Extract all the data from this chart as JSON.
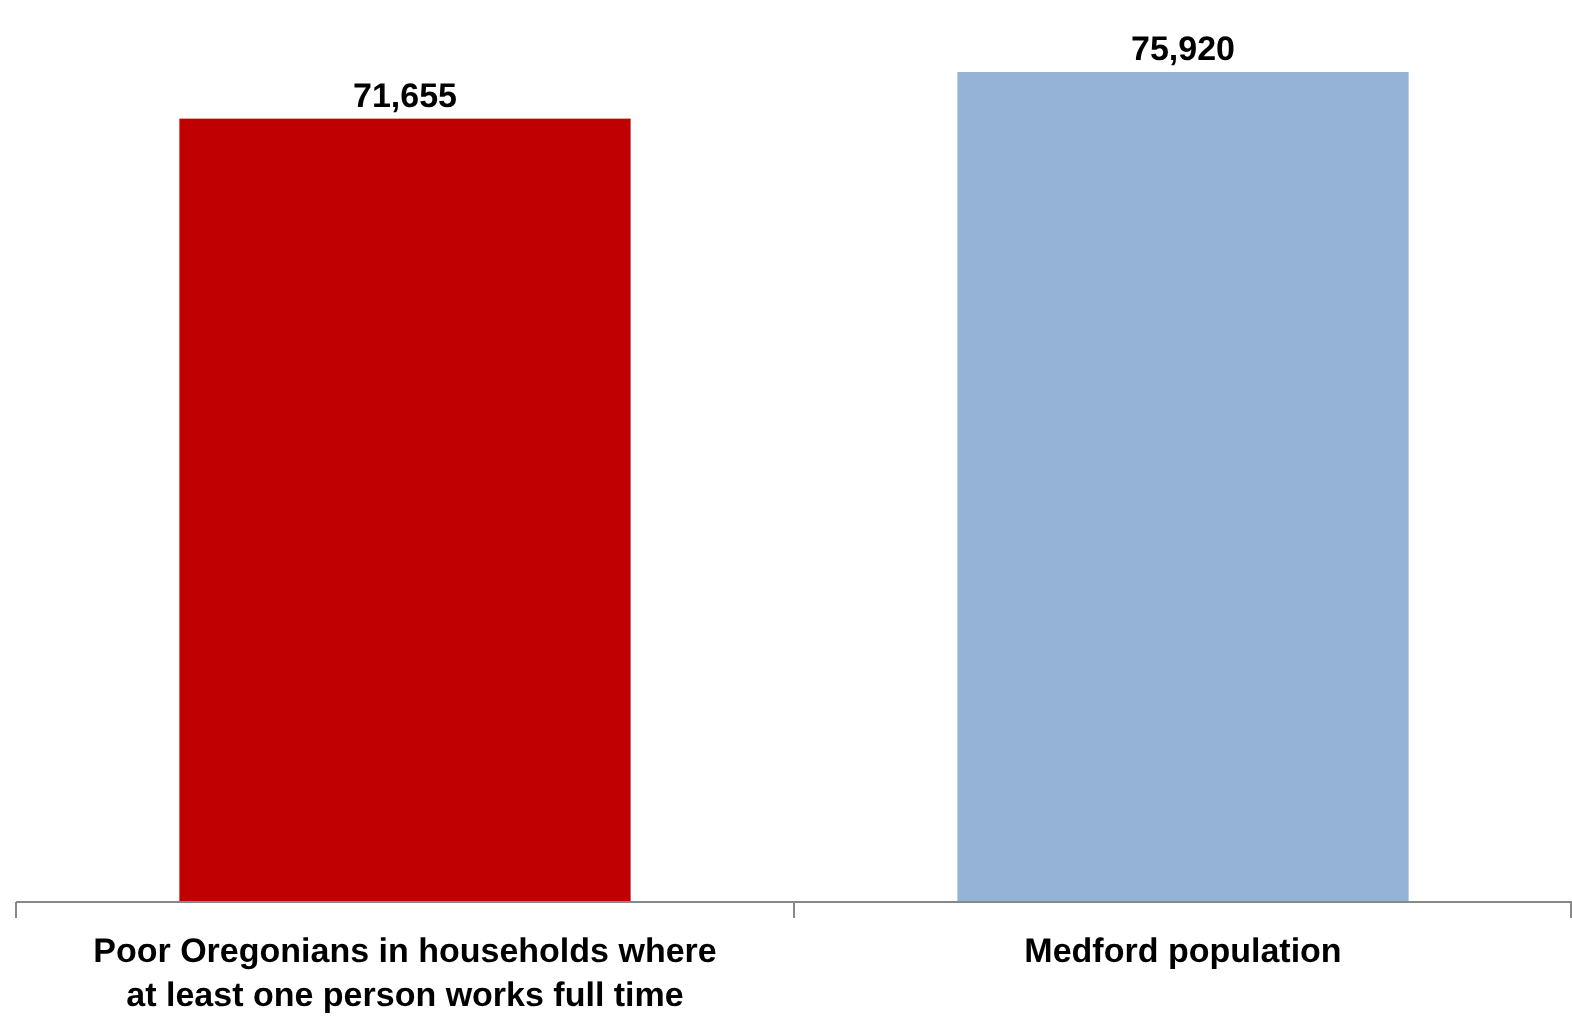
{
  "chart_data": {
    "type": "bar",
    "categories": [
      "Poor Oregonians in households where at least one person works full time",
      "Medford population"
    ],
    "values": [
      71655,
      75920
    ],
    "colors": [
      "#c00000",
      "#95b3d7"
    ],
    "value_labels": [
      "71,655",
      "75,920"
    ]
  }
}
